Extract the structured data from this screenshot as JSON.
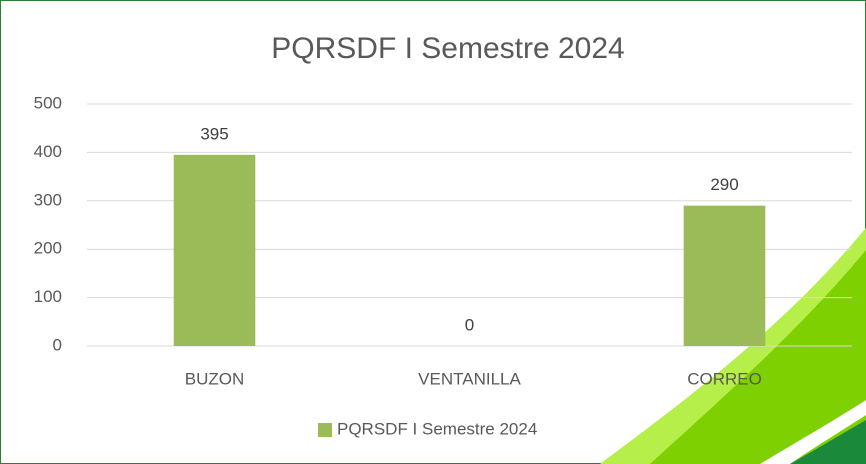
{
  "chart_data": {
    "type": "bar",
    "title": "PQRSDF I Semestre 2024",
    "categories": [
      "BUZON",
      "VENTANILLA",
      "CORREO"
    ],
    "series": [
      {
        "name": "PQRSDF I Semestre 2024",
        "color": "#9bbb59",
        "values": [
          395,
          0,
          290
        ]
      }
    ],
    "ylim": [
      0,
      500
    ],
    "yticks": [
      0,
      100,
      200,
      300,
      400,
      500
    ],
    "grid": true,
    "legend": "bottom"
  }
}
